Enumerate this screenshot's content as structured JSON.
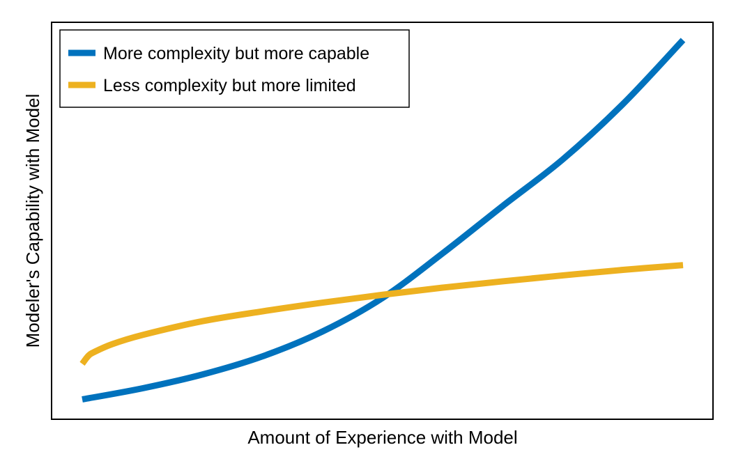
{
  "chart_data": {
    "type": "line",
    "title": "",
    "xlabel": "Amount of Experience with Model",
    "ylabel": "Modeler's Capability with Model",
    "xlim": [
      0,
      1
    ],
    "ylim": [
      0,
      1
    ],
    "grid": false,
    "ticks": false,
    "legend_position": "top-left",
    "series": [
      {
        "name": "More complexity but more capable",
        "color": "#0072BD",
        "x": [
          0.0,
          0.1,
          0.2,
          0.3,
          0.4,
          0.5,
          0.6,
          0.7,
          0.8,
          0.9,
          1.0
        ],
        "y": [
          0.045,
          0.073,
          0.108,
          0.154,
          0.217,
          0.302,
          0.415,
          0.535,
          0.653,
          0.793,
          0.955
        ]
      },
      {
        "name": "Less complexity but more limited",
        "color": "#EDB120",
        "x": [
          0.0,
          0.01,
          0.02,
          0.05,
          0.1,
          0.2,
          0.3,
          0.4,
          0.5,
          0.6,
          0.7,
          0.8,
          0.9,
          1.0
        ],
        "y": [
          0.135,
          0.155,
          0.165,
          0.185,
          0.208,
          0.243,
          0.268,
          0.29,
          0.31,
          0.328,
          0.344,
          0.359,
          0.373,
          0.385
        ]
      }
    ]
  }
}
